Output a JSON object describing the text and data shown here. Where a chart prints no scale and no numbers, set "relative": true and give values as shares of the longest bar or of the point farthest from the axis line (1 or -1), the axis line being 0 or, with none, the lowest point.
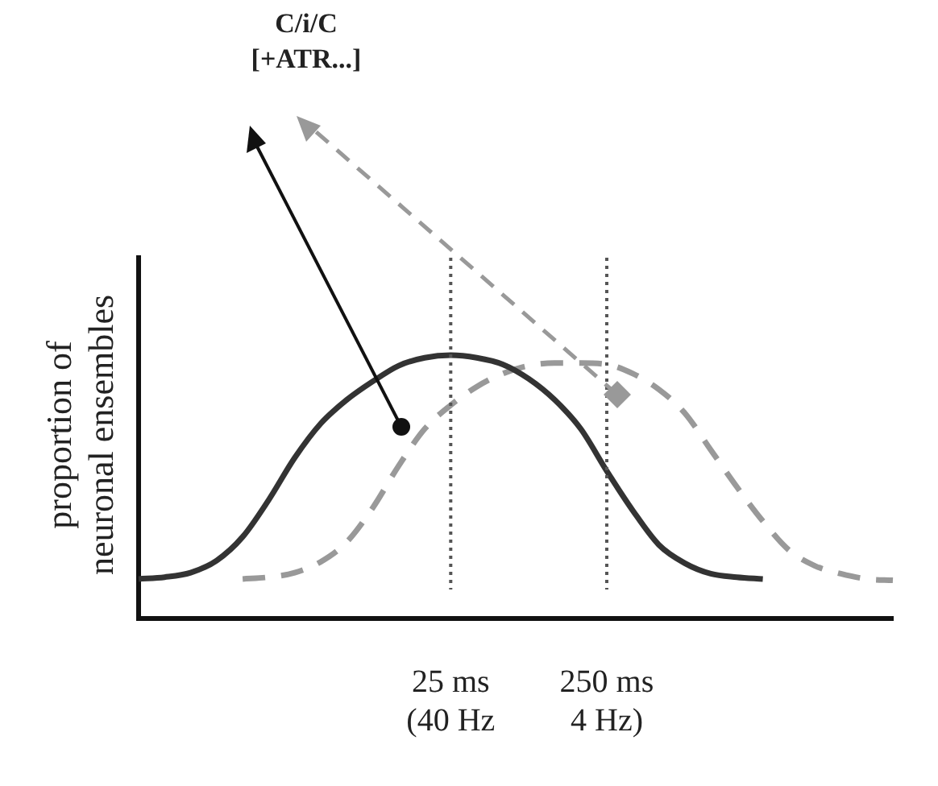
{
  "chart_data": {
    "type": "line",
    "relative": true,
    "ylabel": "proportion of\nneuronal ensembles",
    "annotations": [
      "C/i/C\n[+ATR...]"
    ],
    "categories": [
      null,
      null,
      null,
      null,
      null,
      null,
      null,
      null,
      null,
      null,
      null,
      null,
      "25 ms\n(40 Hz",
      null,
      null,
      null,
      null,
      null,
      "250 ms\n4 Hz)",
      null,
      null,
      null,
      null,
      null,
      null,
      null,
      null,
      null,
      null,
      null
    ],
    "series": [
      {
        "color": "#333333",
        "line_style": "solid",
        "values": [
          0.15,
          0.157,
          0.174,
          0.22,
          0.31,
          0.45,
          0.61,
          0.74,
          0.83,
          0.9,
          0.96,
          0.99,
          1,
          0.99,
          0.965,
          0.91,
          0.83,
          0.72,
          0.56,
          0.41,
          0.28,
          0.21,
          0.17,
          0.157,
          0.15,
          null,
          null,
          null,
          null,
          null
        ]
      },
      {
        "color": "#999999",
        "line_style": "dashed",
        "values": [
          null,
          null,
          null,
          null,
          0.15,
          0.157,
          0.174,
          0.215,
          0.29,
          0.42,
          0.58,
          0.72,
          0.81,
          0.88,
          0.93,
          0.96,
          0.97,
          0.97,
          0.965,
          0.93,
          0.87,
          0.78,
          0.64,
          0.5,
          0.37,
          0.26,
          0.2,
          0.17,
          0.15,
          0.145
        ]
      }
    ],
    "ref_lines": [
      {
        "axis": "x",
        "value": "25 ms\n(40 Hz",
        "line_style": "dotted",
        "color": "#555555"
      },
      {
        "axis": "x",
        "value": "250 ms\n4 Hz)",
        "line_style": "dotted",
        "color": "#555555"
      }
    ],
    "tick_labels": "x",
    "grid": false,
    "legend": false,
    "marker": "none"
  }
}
